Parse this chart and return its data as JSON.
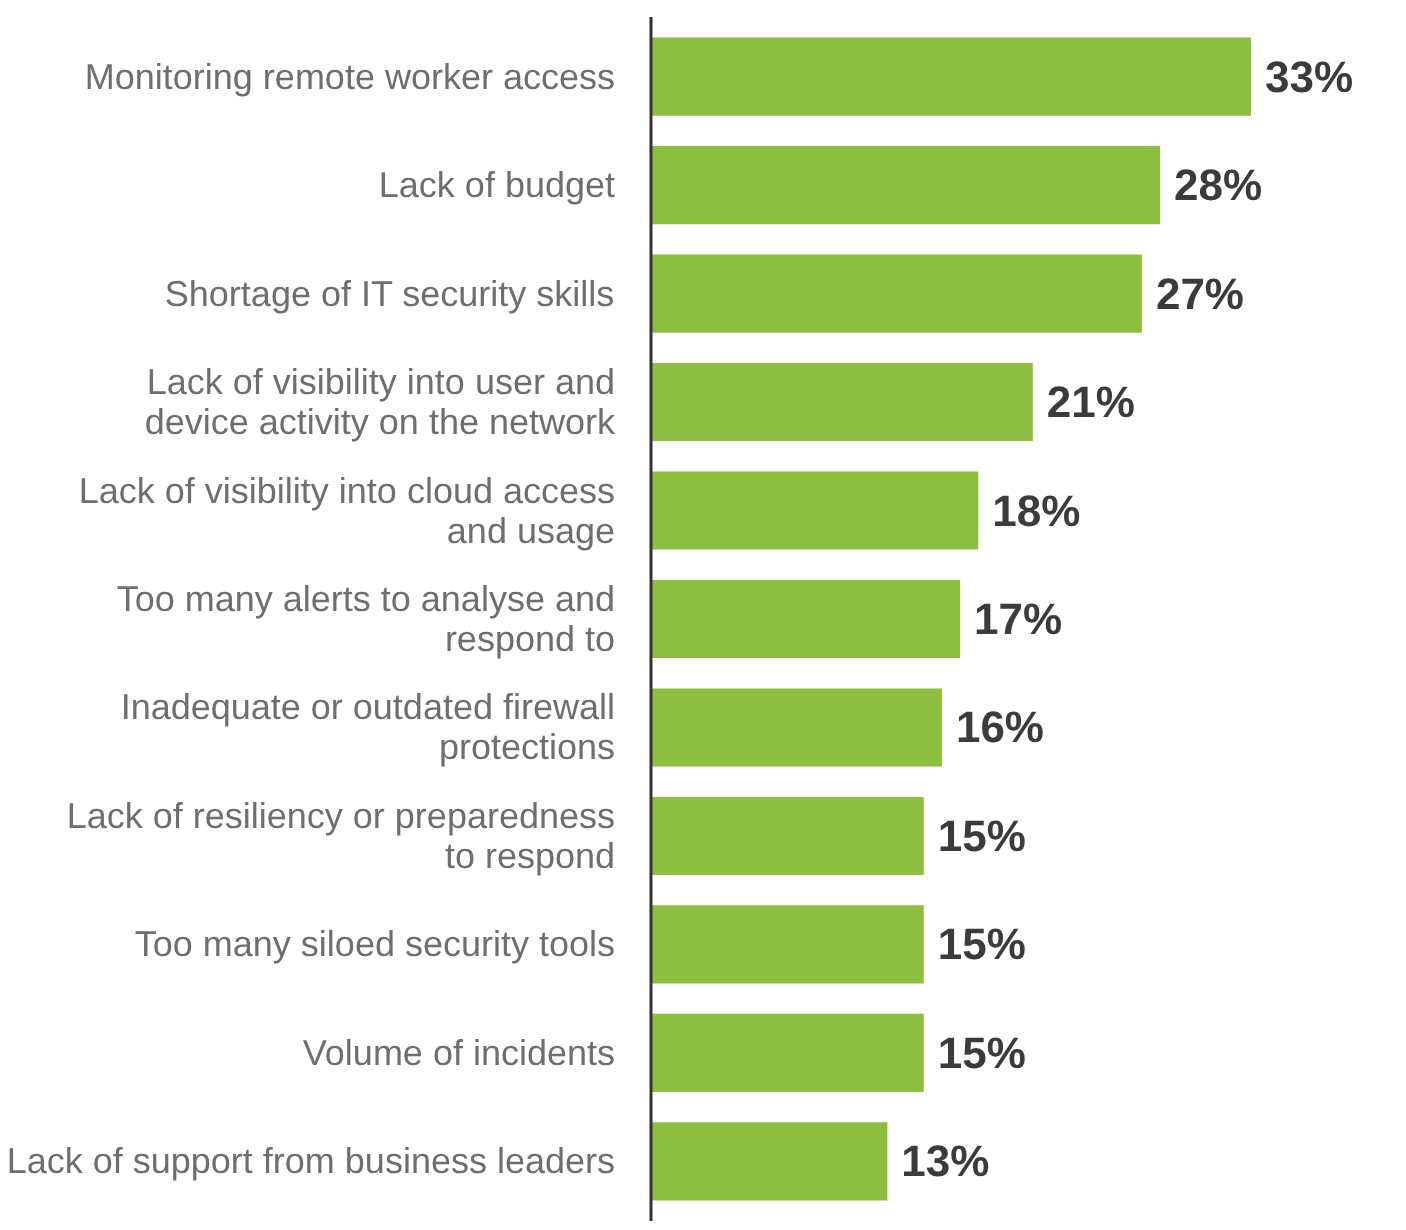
{
  "chart_data": {
    "type": "bar",
    "orientation": "horizontal",
    "categories": [
      "Monitoring remote worker access",
      "Lack of budget",
      "Shortage of IT security skills",
      "Lack of visibility into user and device activity on the network",
      "Lack of visibility into cloud access and usage",
      "Too many alerts to analyse and respond to",
      "Inadequate or outdated firewall protections",
      "Lack of resiliency or preparedness to respond",
      "Too many siloed security tools",
      "Volume of incidents",
      "Lack of support from business leaders"
    ],
    "values": [
      33,
      28,
      27,
      21,
      18,
      17,
      16,
      15,
      15,
      15,
      13
    ],
    "value_labels": [
      "33%",
      "28%",
      "27%",
      "21%",
      "18%",
      "17%",
      "16%",
      "15%",
      "15%",
      "15%",
      "13%"
    ],
    "color": "#8cbe3f",
    "tick_labels": "y",
    "grid": false
  }
}
